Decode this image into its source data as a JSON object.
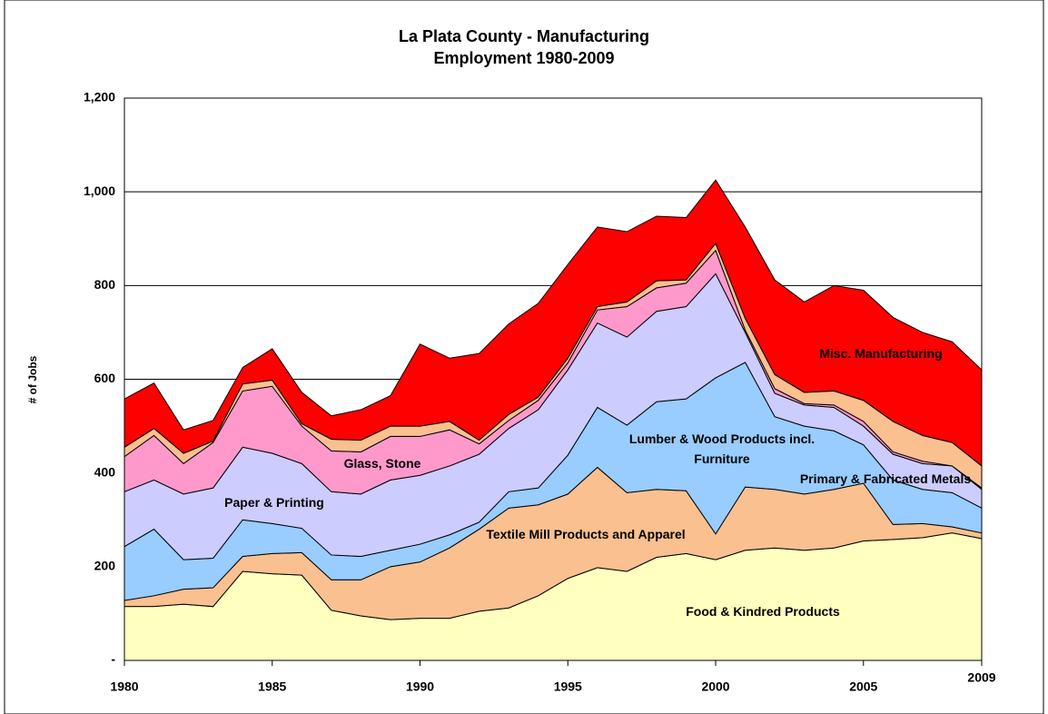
{
  "chart_data": {
    "type": "stacked_area",
    "title": [
      "La Plata County - Manufacturing",
      "Employment 1980-2009"
    ],
    "y_label": "# of Jobs",
    "x": [
      1980,
      1981,
      1982,
      1983,
      1984,
      1985,
      1986,
      1987,
      1988,
      1989,
      1990,
      1991,
      1992,
      1993,
      1994,
      1995,
      1996,
      1997,
      1998,
      1999,
      2000,
      2001,
      2002,
      2003,
      2004,
      2005,
      2006,
      2007,
      2008,
      2009
    ],
    "series": [
      {
        "name": "Food & Kindred Products",
        "color": "#ffffc0",
        "values": [
          115,
          115,
          120,
          115,
          190,
          185,
          182,
          107,
          95,
          87,
          90,
          90,
          105,
          112,
          138,
          175,
          198,
          190,
          220,
          228,
          215,
          235,
          240,
          235,
          240,
          255,
          258,
          262,
          272,
          260
        ]
      },
      {
        "name": "Textile Mill Products and Apparel",
        "color": "#fac090",
        "values": [
          13,
          23,
          32,
          40,
          32,
          43,
          48,
          65,
          77,
          113,
          120,
          150,
          175,
          213,
          194,
          180,
          214,
          168,
          145,
          134,
          55,
          135,
          125,
          120,
          125,
          123,
          32,
          30,
          13,
          12
        ]
      },
      {
        "name": "Lumber & Wood Products incl. Furniture",
        "color": "#99ccff",
        "values": [
          115,
          142,
          63,
          63,
          78,
          64,
          52,
          53,
          50,
          35,
          38,
          28,
          15,
          35,
          36,
          83,
          128,
          144,
          187,
          196,
          333,
          266,
          155,
          145,
          125,
          82,
          95,
          73,
          73,
          53
        ]
      },
      {
        "name": "Paper & Printing",
        "color": "#ccccff",
        "values": [
          117,
          105,
          140,
          150,
          155,
          150,
          138,
          135,
          133,
          150,
          147,
          147,
          145,
          135,
          167,
          182,
          180,
          188,
          193,
          197,
          222,
          64,
          50,
          45,
          50,
          40,
          55,
          55,
          57,
          40
        ]
      },
      {
        "name": "Glass, Stone",
        "color": "#ff99cc",
        "values": [
          75,
          95,
          65,
          97,
          120,
          143,
          80,
          87,
          90,
          93,
          83,
          77,
          22,
          17,
          20,
          15,
          28,
          65,
          50,
          50,
          50,
          5,
          10,
          3,
          5,
          10,
          5,
          5,
          0,
          3
        ]
      },
      {
        "name": "Primary & Fabricated Metals",
        "color": "#fac090",
        "values": [
          20,
          15,
          22,
          3,
          15,
          13,
          5,
          25,
          25,
          22,
          22,
          18,
          8,
          13,
          7,
          10,
          7,
          10,
          15,
          7,
          15,
          25,
          30,
          24,
          30,
          45,
          65,
          55,
          50,
          47
        ]
      },
      {
        "name": "Misc. Manufacturing",
        "color": "#ff0000",
        "values": [
          103,
          97,
          50,
          44,
          35,
          67,
          67,
          50,
          65,
          65,
          175,
          135,
          185,
          193,
          200,
          200,
          170,
          150,
          138,
          133,
          135,
          195,
          202,
          193,
          225,
          235,
          222,
          220,
          215,
          205
        ]
      }
    ],
    "xlim": [
      1980,
      2009
    ],
    "xticks": [
      1980,
      1985,
      1990,
      1995,
      2000,
      2005,
      2009
    ],
    "ylim": [
      0,
      1200
    ],
    "yticks": [
      {
        "value": 0,
        "label": "-"
      },
      200,
      400,
      600,
      800,
      {
        "value": 1000,
        "label": "1,000"
      },
      {
        "value": 1200,
        "label": "1,200"
      }
    ],
    "grid": true
  }
}
